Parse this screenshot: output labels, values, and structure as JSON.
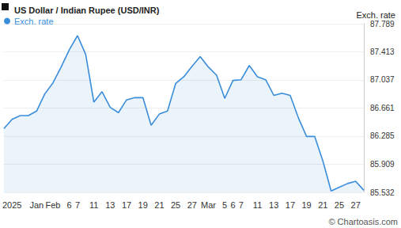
{
  "chart_data": {
    "type": "line",
    "title": "US Dollar / Indian Rupee (USD/INR)",
    "y_label": "Exch. rate",
    "annotations": [
      "© Chartoasis.com"
    ],
    "categories": [
      null,
      "2025",
      null,
      null,
      "Jan",
      null,
      "Feb",
      null,
      "6",
      "7",
      null,
      "11",
      null,
      "13",
      null,
      "17",
      null,
      "19",
      null,
      "21",
      null,
      "25",
      null,
      "27",
      null,
      "Mar",
      null,
      "5",
      "6",
      "7",
      null,
      "11",
      null,
      "13",
      null,
      "17",
      null,
      "19",
      null,
      "21",
      null,
      "25",
      null,
      "27",
      null
    ],
    "series": [
      {
        "name": "Exch. rate",
        "color": "#3a8ddb",
        "values": [
          86.386,
          86.51,
          86.56,
          86.56,
          86.62,
          86.85,
          86.998,
          87.21,
          87.44,
          87.63,
          87.38,
          86.74,
          86.88,
          86.67,
          86.6,
          86.77,
          86.8,
          86.8,
          86.43,
          86.58,
          86.62,
          86.99,
          87.08,
          87.22,
          87.35,
          87.21,
          87.1,
          86.79,
          87.03,
          87.04,
          87.23,
          87.08,
          87.04,
          86.83,
          86.86,
          86.83,
          86.53,
          86.28,
          86.28,
          85.95,
          85.55,
          85.6,
          85.65,
          85.68,
          85.56
        ]
      }
    ],
    "ylim": [
      85.532,
      87.789
    ],
    "yticks": [
      85.532,
      85.909,
      86.285,
      86.661,
      87.037,
      87.413,
      87.789
    ],
    "grid": true,
    "legend": "top-left",
    "marker": "none"
  }
}
